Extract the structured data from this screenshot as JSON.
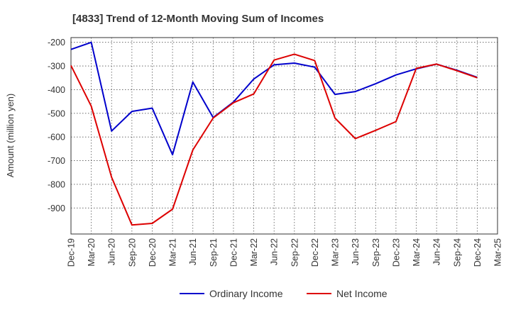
{
  "chart_data": {
    "type": "line",
    "title": "[4833]  Trend of 12-Month Moving Sum of Incomes",
    "xlabel": "",
    "ylabel": "Amount (million yen)",
    "categories": [
      "Dec-19",
      "Mar-20",
      "Jun-20",
      "Sep-20",
      "Dec-20",
      "Mar-21",
      "Jun-21",
      "Sep-21",
      "Dec-21",
      "Mar-22",
      "Jun-22",
      "Sep-22",
      "Dec-22",
      "Mar-23",
      "Jun-23",
      "Sep-23",
      "Dec-23",
      "Mar-24",
      "Jun-24",
      "Sep-24",
      "Dec-24",
      "Mar-25"
    ],
    "ylim": [
      -1010,
      -180
    ],
    "yticks": [
      -200,
      -300,
      -400,
      -500,
      -600,
      -700,
      -800,
      -900
    ],
    "grid": true,
    "legend_position": "bottom",
    "series": [
      {
        "name": "Ordinary Income",
        "color": "#0000cc",
        "values": [
          -230,
          -200,
          -575,
          -492,
          -478,
          -675,
          -368,
          -518,
          -452,
          -355,
          -295,
          -288,
          -305,
          -420,
          -408,
          -375,
          -338,
          -312,
          -292,
          -318,
          -348,
          null
        ]
      },
      {
        "name": "Net Income",
        "color": "#dd0000",
        "values": [
          -298,
          -470,
          -770,
          -972,
          -965,
          -905,
          -655,
          -520,
          -455,
          -418,
          -275,
          -250,
          -277,
          -520,
          -607,
          -572,
          -535,
          -310,
          -292,
          -320,
          -350,
          null
        ]
      }
    ]
  }
}
